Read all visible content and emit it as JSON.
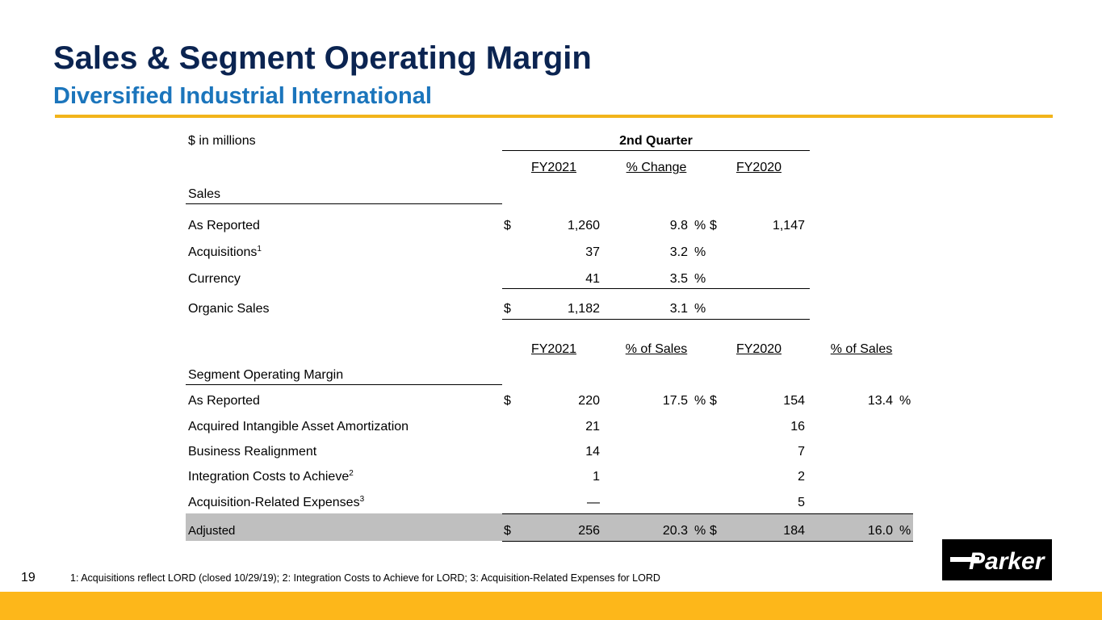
{
  "header": {
    "title": "Sales & Segment Operating Margin",
    "subtitle": "Diversified Industrial International"
  },
  "table": {
    "units": "$ in millions",
    "period": "2nd Quarter",
    "sales_columns": [
      "FY2021",
      "% Change",
      "FY2020"
    ],
    "sales_section": "Sales",
    "sales_rows": [
      {
        "label": "As Reported",
        "sup": "",
        "dollar": "$",
        "fy2021": "1,260",
        "pct": "9.8",
        "pct_sign": "%",
        "dollar2": "$",
        "fy2020": "1,147"
      },
      {
        "label": "Acquisitions",
        "sup": "1",
        "dollar": "",
        "fy2021": "37",
        "pct": "3.2",
        "pct_sign": "%",
        "dollar2": "",
        "fy2020": ""
      },
      {
        "label": "Currency",
        "sup": "",
        "dollar": "",
        "fy2021": "41",
        "pct": "3.5",
        "pct_sign": "%",
        "dollar2": "",
        "fy2020": ""
      },
      {
        "label": "Organic Sales",
        "sup": "",
        "dollar": "$",
        "fy2021": "1,182",
        "pct": "3.1",
        "pct_sign": "%",
        "dollar2": "",
        "fy2020": ""
      }
    ],
    "margin_columns": [
      "FY2021",
      "% of Sales",
      "FY2020",
      "% of Sales"
    ],
    "margin_section": "Segment Operating Margin",
    "margin_rows": [
      {
        "label": "As Reported",
        "sup": "",
        "dollar": "$",
        "fy2021": "220",
        "pct": "17.5",
        "pct_sign": "%",
        "dollar2": "$",
        "fy2020": "154",
        "pct2": "13.4",
        "pct2_sign": "%"
      },
      {
        "label": "Acquired Intangible Asset Amortization",
        "sup": "",
        "dollar": "",
        "fy2021": "21",
        "pct": "",
        "pct_sign": "",
        "dollar2": "",
        "fy2020": "16",
        "pct2": "",
        "pct2_sign": ""
      },
      {
        "label": "Business Realignment",
        "sup": "",
        "dollar": "",
        "fy2021": "14",
        "pct": "",
        "pct_sign": "",
        "dollar2": "",
        "fy2020": "7",
        "pct2": "",
        "pct2_sign": ""
      },
      {
        "label": "Integration Costs to Achieve",
        "sup": "2",
        "dollar": "",
        "fy2021": "1",
        "pct": "",
        "pct_sign": "",
        "dollar2": "",
        "fy2020": "2",
        "pct2": "",
        "pct2_sign": ""
      },
      {
        "label": "Acquisition-Related Expenses",
        "sup": "3",
        "dollar": "",
        "fy2021": "—",
        "pct": "",
        "pct_sign": "",
        "dollar2": "",
        "fy2020": "5",
        "pct2": "",
        "pct2_sign": ""
      },
      {
        "label": "Adjusted",
        "sup": "",
        "dollar": "$",
        "fy2021": "256",
        "pct": "20.3",
        "pct_sign": "%",
        "dollar2": "$",
        "fy2020": "184",
        "pct2": "16.0",
        "pct2_sign": "%"
      }
    ]
  },
  "footer": {
    "page_number": "19",
    "footnote": "1: Acquisitions reflect LORD (closed 10/29/19);   2: Integration Costs to Achieve for LORD;   3: Acquisition-Related Expenses for LORD",
    "logo_text": "Parker",
    "logo_icon": "parker-logo-icon"
  },
  "colors": {
    "title": "#0b2451",
    "subtitle": "#1b75bc",
    "gold": "#fdb71a",
    "highlight": "#bfbfbf"
  }
}
